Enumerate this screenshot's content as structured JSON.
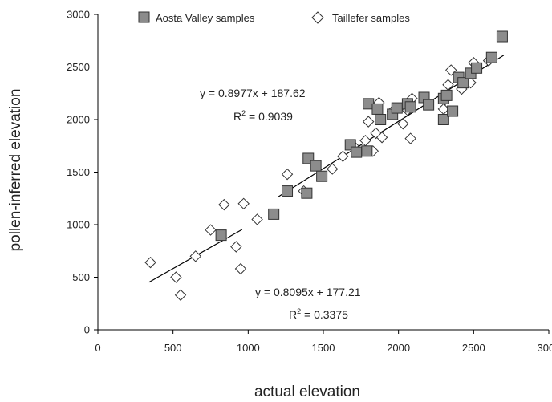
{
  "chart_data": {
    "type": "scatter",
    "xlabel": "actual elevation",
    "ylabel": "pollen-inferred elevation",
    "xlim": [
      0,
      3000
    ],
    "ylim": [
      0,
      3000
    ],
    "x_ticks": [
      0,
      500,
      1000,
      1500,
      2000,
      2500,
      3000
    ],
    "y_ticks": [
      0,
      500,
      1000,
      1500,
      2000,
      2500,
      3000
    ],
    "grid": false,
    "legend_position": "top",
    "series": [
      {
        "name": "Aosta Valley samples",
        "marker": "square",
        "color": "#8c8c8c",
        "points": [
          [
            820,
            900
          ],
          [
            1170,
            1100
          ],
          [
            1260,
            1320
          ],
          [
            1390,
            1300
          ],
          [
            1400,
            1630
          ],
          [
            1450,
            1560
          ],
          [
            1490,
            1460
          ],
          [
            1680,
            1760
          ],
          [
            1720,
            1690
          ],
          [
            1790,
            1700
          ],
          [
            1800,
            2150
          ],
          [
            1860,
            2100
          ],
          [
            1880,
            2000
          ],
          [
            1960,
            2050
          ],
          [
            1990,
            2110
          ],
          [
            2060,
            2150
          ],
          [
            2080,
            2120
          ],
          [
            2170,
            2210
          ],
          [
            2200,
            2140
          ],
          [
            2300,
            2200
          ],
          [
            2300,
            2000
          ],
          [
            2320,
            2230
          ],
          [
            2360,
            2080
          ],
          [
            2400,
            2400
          ],
          [
            2430,
            2350
          ],
          [
            2480,
            2440
          ],
          [
            2520,
            2490
          ],
          [
            2620,
            2590
          ],
          [
            2690,
            2790
          ]
        ]
      },
      {
        "name": "Taillefer samples",
        "marker": "diamond",
        "color": "#ffffff",
        "points": [
          [
            350,
            640
          ],
          [
            520,
            500
          ],
          [
            550,
            330
          ],
          [
            650,
            700
          ],
          [
            750,
            950
          ],
          [
            840,
            1190
          ],
          [
            920,
            790
          ],
          [
            950,
            580
          ],
          [
            970,
            1200
          ],
          [
            1060,
            1050
          ],
          [
            1260,
            1480
          ],
          [
            1370,
            1320
          ],
          [
            1560,
            1530
          ],
          [
            1630,
            1650
          ],
          [
            1700,
            1750
          ],
          [
            1780,
            1800
          ],
          [
            1800,
            1980
          ],
          [
            1830,
            1700
          ],
          [
            1850,
            1870
          ],
          [
            1870,
            2160
          ],
          [
            1890,
            1830
          ],
          [
            1960,
            2080
          ],
          [
            2030,
            1960
          ],
          [
            2060,
            2090
          ],
          [
            2080,
            1820
          ],
          [
            2090,
            2200
          ],
          [
            2300,
            2100
          ],
          [
            2310,
            2190
          ],
          [
            2330,
            2330
          ],
          [
            2350,
            2470
          ],
          [
            2420,
            2290
          ],
          [
            2480,
            2350
          ],
          [
            2500,
            2540
          ],
          [
            2600,
            2560
          ]
        ]
      }
    ],
    "trendlines": [
      {
        "slope": 0.8977,
        "intercept": 187.62,
        "x_range": [
          1200,
          2700
        ],
        "equation": "y = 0.8977x + 187.62",
        "r2_prefix": "R",
        "r2_value": " = 0.9039"
      },
      {
        "slope": 0.8095,
        "intercept": 177.21,
        "x_range": [
          340,
          960
        ],
        "equation": "y = 0.8095x + 177.21",
        "r2_prefix": "R",
        "r2_value": " = 0.3375"
      }
    ]
  }
}
